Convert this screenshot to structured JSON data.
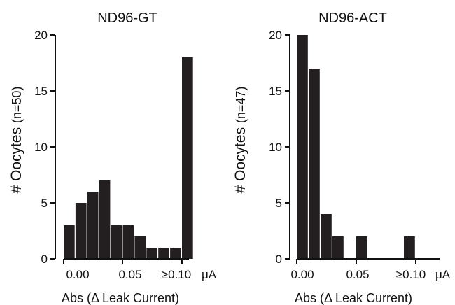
{
  "chart_data": [
    {
      "type": "bar",
      "title": "ND96-GT",
      "ylabel_main": "# Oocytes",
      "ylabel_n": "(n=50)",
      "xlabel": "Abs (Δ Leak Current)",
      "x_ticks": [
        "0.00",
        "0.05",
        "≥0.10"
      ],
      "x_unit": "μA",
      "y_ticks": [
        0,
        5,
        10,
        15,
        20
      ],
      "ylim": [
        0,
        20
      ],
      "bins": [
        "0.000-0.010",
        "0.010-0.020",
        "0.020-0.030",
        "0.030-0.040",
        "0.040-0.050",
        "0.050-0.060",
        "0.060-0.070",
        "0.070-0.080",
        "0.080-0.090",
        "0.090-0.100",
        "≥0.10"
      ],
      "values": [
        3,
        5,
        6,
        7,
        3,
        3,
        2,
        1,
        1,
        1,
        18
      ],
      "grid": false,
      "color": "#231f20"
    },
    {
      "type": "bar",
      "title": "ND96-ACT",
      "ylabel_main": "# Oocytes",
      "ylabel_n": "(n=47)",
      "xlabel": "Abs (Δ Leak Current)",
      "x_ticks": [
        "0.00",
        "0.05",
        "≥0.10"
      ],
      "x_unit": "μA",
      "y_ticks": [
        0,
        5,
        10,
        15,
        20
      ],
      "ylim": [
        0,
        20
      ],
      "bins": [
        "0.000-0.010",
        "0.010-0.020",
        "0.020-0.030",
        "0.030-0.040",
        "0.040-0.050",
        "0.050-0.060",
        "0.060-0.070",
        "0.070-0.080",
        "0.080-0.090",
        "0.090-0.100",
        "≥0.10"
      ],
      "values": [
        20,
        17,
        4,
        2,
        0,
        2,
        0,
        0,
        0,
        2,
        0
      ],
      "grid": false,
      "color": "#231f20"
    }
  ]
}
